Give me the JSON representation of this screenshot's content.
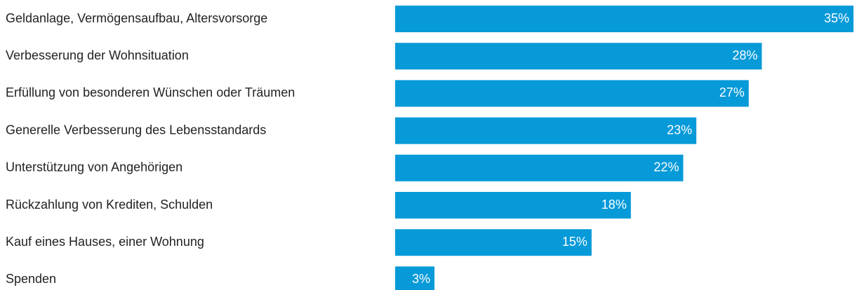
{
  "chart_data": {
    "type": "bar",
    "orientation": "horizontal",
    "categories": [
      "Geldanlage, Vermögensaufbau, Altersvorsorge",
      "Verbesserung der Wohnsituation",
      "Erfüllung von besonderen Wünschen oder Träumen",
      "Generelle Verbesserung des Lebensstandards",
      "Unterstützung von Angehörigen",
      "Rückzahlung von Krediten, Schulden",
      "Kauf eines Hauses, einer Wohnung",
      "Spenden"
    ],
    "values": [
      35,
      28,
      27,
      23,
      22,
      18,
      15,
      3
    ],
    "value_labels": [
      "35%",
      "28%",
      "27%",
      "23%",
      "22%",
      "18%",
      "15%",
      "3%"
    ],
    "color": "#069ad9"
  }
}
